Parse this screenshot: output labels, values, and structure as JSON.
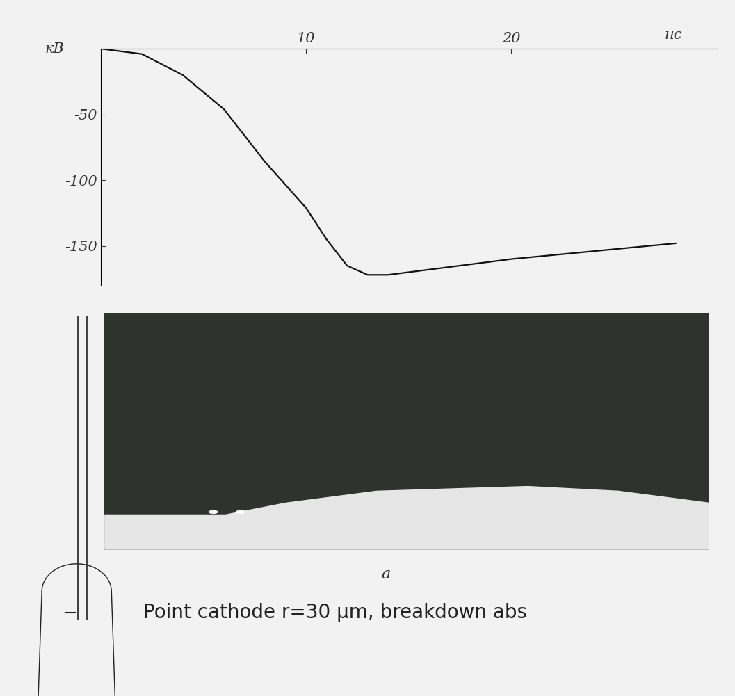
{
  "chart_data": {
    "type": "line",
    "x_label": "нс",
    "y_label": "кВ",
    "x": [
      0,
      2,
      4,
      6,
      8,
      10,
      11,
      12,
      13,
      14,
      16,
      18,
      20,
      22,
      24,
      26,
      28
    ],
    "values": [
      0,
      -4,
      -20,
      -46,
      -86,
      -121,
      -145,
      -165,
      -172,
      -172,
      -168,
      -164,
      -160,
      -157,
      -154,
      -151,
      -148
    ],
    "color": "#111111",
    "xlim": [
      0,
      30
    ],
    "ylim": [
      -180,
      0
    ],
    "xticks": [
      10,
      20
    ],
    "yticks": [
      -50,
      -100,
      -150
    ],
    "grid": false,
    "panel_label": "а",
    "caption": "Point cathode r=30 μm, breakdown abs"
  }
}
